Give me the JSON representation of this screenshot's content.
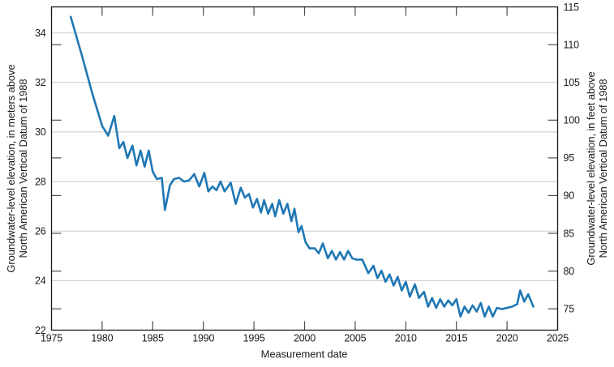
{
  "chart_data": {
    "type": "line",
    "title": "",
    "xlabel": "Measurement date",
    "ylabel_left": {
      "line1": "Groundwater-level elevation, in meters above",
      "line2": "North American Vertical Datum of 1988"
    },
    "ylabel_right": {
      "line1": "Groundwater-level elevation, in feet above",
      "line2": "North American Vertical Datum of 1988"
    },
    "xlim": [
      1975,
      2025
    ],
    "ylim_meters": [
      22,
      35.052
    ],
    "x_ticks": [
      1975,
      1980,
      1985,
      1990,
      1995,
      2000,
      2005,
      2010,
      2015,
      2020,
      2025
    ],
    "y_ticks_left_meters": [
      22,
      24,
      26,
      28,
      30,
      32,
      34
    ],
    "y_ticks_right_feet": [
      75,
      80,
      85,
      90,
      95,
      100,
      105,
      110,
      115
    ],
    "gridlines_meters": [
      24,
      26,
      28,
      30,
      32,
      34
    ],
    "grid": "horizontal",
    "legend": "none",
    "colors": {
      "line": "#1f77b4",
      "grid": "#c8c8c8",
      "axis": "#1a1a1a",
      "tick": "#4d4d4d",
      "text": "#1a1a1a"
    },
    "series": [
      {
        "name": "Groundwater-level elevation",
        "x": [
          1976.9,
          1978.0,
          1979.0,
          1980.0,
          1980.6,
          1981.2,
          1981.7,
          1982.1,
          1982.5,
          1983.0,
          1983.4,
          1983.8,
          1984.2,
          1984.6,
          1985.0,
          1985.4,
          1985.9,
          1986.2,
          1986.7,
          1987.1,
          1987.6,
          1988.1,
          1988.6,
          1989.1,
          1989.6,
          1990.1,
          1990.5,
          1990.9,
          1991.3,
          1991.7,
          1992.1,
          1992.7,
          1993.2,
          1993.7,
          1994.1,
          1994.5,
          1994.9,
          1995.3,
          1995.7,
          1996.0,
          1996.4,
          1996.8,
          1997.1,
          1997.5,
          1997.9,
          1998.3,
          1998.7,
          1999.0,
          1999.4,
          1999.7,
          2000.1,
          2000.5,
          2001.0,
          2001.4,
          2001.8,
          2002.3,
          2002.7,
          2003.1,
          2003.5,
          2003.9,
          2004.3,
          2004.7,
          2005.1,
          2005.7,
          2006.3,
          2006.8,
          2007.2,
          2007.6,
          2008.0,
          2008.4,
          2008.8,
          2009.2,
          2009.6,
          2010.0,
          2010.4,
          2010.9,
          2011.3,
          2011.8,
          2012.2,
          2012.6,
          2013.0,
          2013.4,
          2013.8,
          2014.2,
          2014.6,
          2015.0,
          2015.4,
          2015.8,
          2016.2,
          2016.6,
          2017.0,
          2017.4,
          2017.8,
          2018.2,
          2018.6,
          2019.0,
          2019.5,
          2020.0,
          2020.5,
          2021.0,
          2021.3,
          2021.7,
          2022.1,
          2022.6
        ],
        "y_meters": [
          34.65,
          33.1,
          31.6,
          30.25,
          29.85,
          30.65,
          29.35,
          29.6,
          28.95,
          29.45,
          28.65,
          29.25,
          28.6,
          29.25,
          28.4,
          28.1,
          28.15,
          26.85,
          27.85,
          28.1,
          28.15,
          28.0,
          28.05,
          28.3,
          27.8,
          28.35,
          27.6,
          27.8,
          27.65,
          28.0,
          27.6,
          27.95,
          27.1,
          27.75,
          27.35,
          27.5,
          26.95,
          27.3,
          26.75,
          27.25,
          26.7,
          27.1,
          26.6,
          27.25,
          26.7,
          27.1,
          26.4,
          26.9,
          25.95,
          26.2,
          25.55,
          25.3,
          25.3,
          25.1,
          25.5,
          24.9,
          25.2,
          24.85,
          25.15,
          24.85,
          25.2,
          24.9,
          24.85,
          24.85,
          24.3,
          24.6,
          24.1,
          24.4,
          23.95,
          24.25,
          23.8,
          24.15,
          23.6,
          23.95,
          23.35,
          23.85,
          23.3,
          23.55,
          22.95,
          23.3,
          22.9,
          23.25,
          22.95,
          23.2,
          23.0,
          23.25,
          22.55,
          22.95,
          22.7,
          23.0,
          22.75,
          23.1,
          22.55,
          22.95,
          22.55,
          22.9,
          22.85,
          22.9,
          22.95,
          23.05,
          23.6,
          23.15,
          23.45,
          22.95
        ]
      }
    ]
  }
}
